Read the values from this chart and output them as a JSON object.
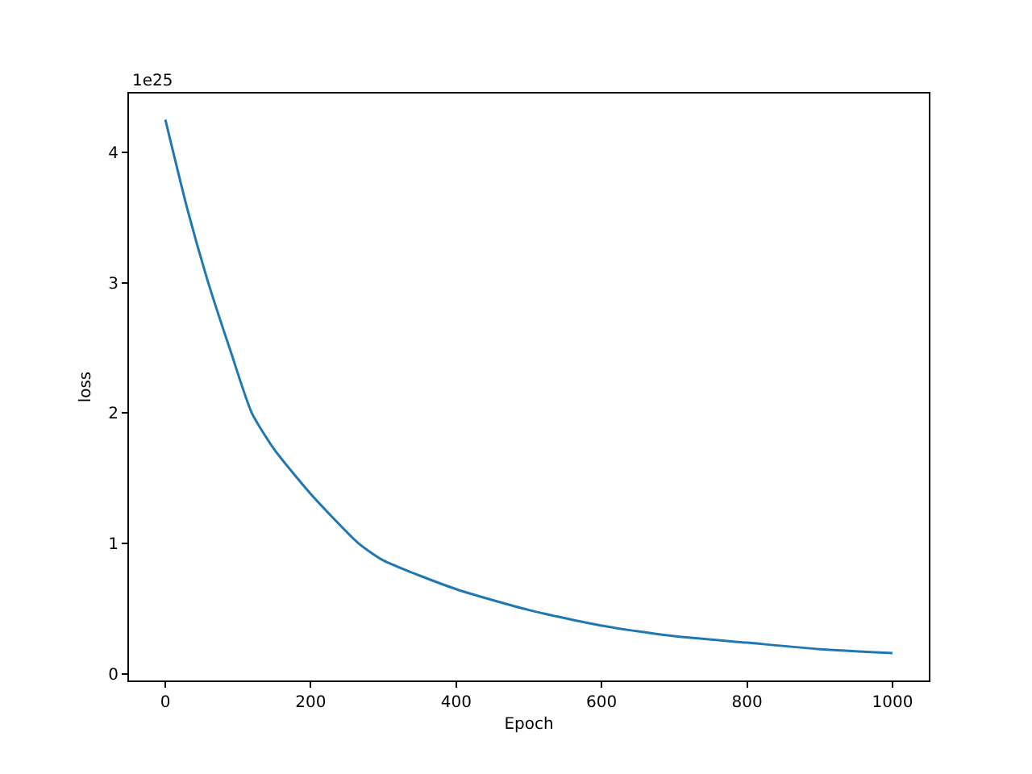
{
  "chart_data": {
    "type": "line",
    "xlabel": "Epoch",
    "ylabel": "loss",
    "annotations": [
      "1e25"
    ],
    "x": [
      0,
      30,
      59,
      90,
      119,
      150,
      200,
      266,
      300,
      400,
      500,
      600,
      700,
      800,
      900,
      1000
    ],
    "series": [
      {
        "color": "#1f77b4",
        "values": [
          4.25,
          3.57,
          3.0,
          2.47,
          2.0,
          1.72,
          1.38,
          1.0,
          0.87,
          0.65,
          0.49,
          0.37,
          0.29,
          0.24,
          0.19,
          0.16
        ]
      }
    ],
    "xlim": [
      -50,
      1050
    ],
    "xticks": [
      0,
      200,
      400,
      600,
      800,
      1000
    ],
    "ylim": [
      -0.05,
      4.45
    ],
    "yticks": [
      0,
      1,
      2,
      3,
      4
    ],
    "grid": false,
    "marker": "none",
    "line_style": "solid"
  }
}
